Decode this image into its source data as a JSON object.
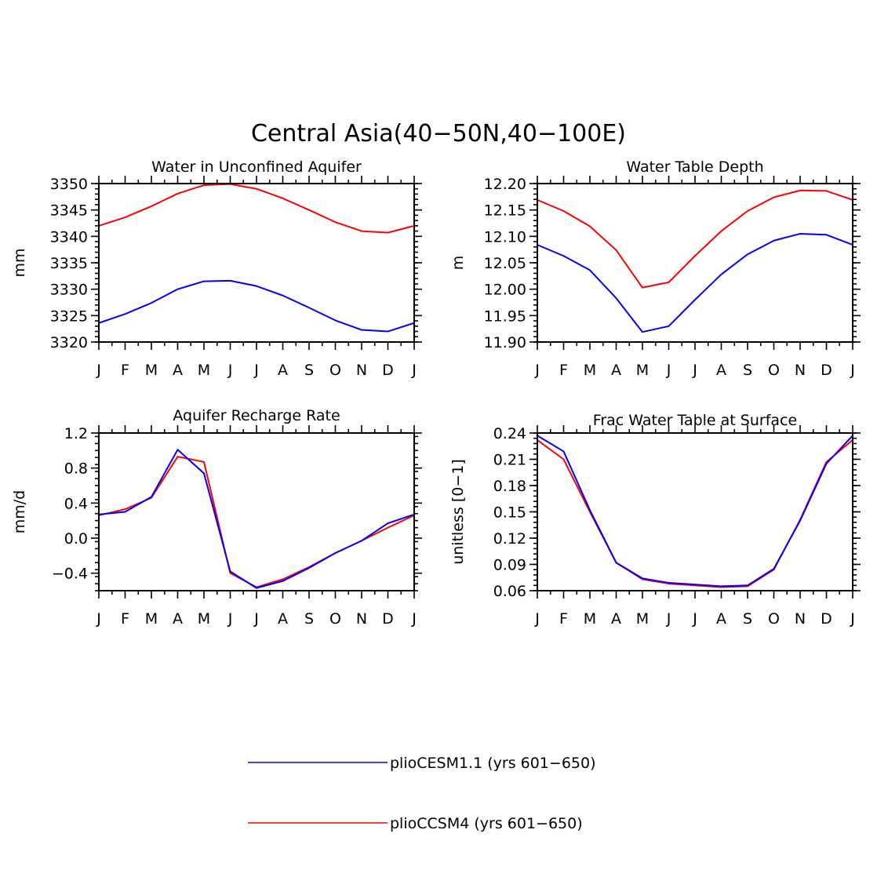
{
  "title": "Central Asia(40−50N,40−100E)",
  "colors": {
    "blue": "#0000ff",
    "red": "#ff0000"
  },
  "legend": [
    {
      "label": "plioCESM1.1 (yrs 601−650)",
      "color": "#0000ff"
    },
    {
      "label": "plioCCSM4 (yrs 601−650)",
      "color": "#ff0000"
    }
  ],
  "chart_data": [
    {
      "type": "line",
      "title": "Water in Unconfined Aquifer",
      "ylabel": "mm",
      "categories": [
        "J",
        "F",
        "M",
        "A",
        "M",
        "J",
        "J",
        "A",
        "S",
        "O",
        "N",
        "D",
        "J"
      ],
      "ylim": [
        3320,
        3350
      ],
      "yticks": [
        3320,
        3325,
        3330,
        3335,
        3340,
        3345,
        3350
      ],
      "ytick_labels": [
        "3320",
        "3325",
        "3330",
        "3335",
        "3340",
        "3345",
        "3350"
      ],
      "series": [
        {
          "name": "plioCESM1.1 (yrs 601−650)",
          "color": "#0000ff",
          "values": [
            3323.6,
            3325.3,
            3327.4,
            3330.0,
            3331.5,
            3331.6,
            3330.6,
            3328.8,
            3326.5,
            3324.1,
            3322.3,
            3322.0,
            3323.6
          ]
        },
        {
          "name": "plioCCSM4 (yrs 601−650)",
          "color": "#ff0000",
          "values": [
            3342.0,
            3343.6,
            3345.7,
            3348.1,
            3349.7,
            3349.9,
            3349.0,
            3347.2,
            3345.0,
            3342.7,
            3341.0,
            3340.7,
            3342.0
          ]
        }
      ]
    },
    {
      "type": "line",
      "title": "Water Table Depth",
      "ylabel": "m",
      "categories": [
        "J",
        "F",
        "M",
        "A",
        "M",
        "J",
        "J",
        "A",
        "S",
        "O",
        "N",
        "D",
        "J"
      ],
      "ylim": [
        11.9,
        12.2
      ],
      "yticks": [
        11.9,
        11.95,
        12.0,
        12.05,
        12.1,
        12.15,
        12.2
      ],
      "ytick_labels": [
        "11.90",
        "11.95",
        "12.00",
        "12.05",
        "12.10",
        "12.15",
        "12.20"
      ],
      "series": [
        {
          "name": "plioCESM1.1 (yrs 601−650)",
          "color": "#0000ff",
          "values": [
            12.084,
            12.063,
            12.036,
            11.983,
            11.919,
            11.93,
            11.98,
            12.028,
            12.066,
            12.092,
            12.105,
            12.103,
            12.084
          ]
        },
        {
          "name": "plioCCSM4 (yrs 601−650)",
          "color": "#ff0000",
          "values": [
            12.169,
            12.148,
            12.119,
            12.074,
            12.003,
            12.013,
            12.063,
            12.11,
            12.148,
            12.174,
            12.187,
            12.186,
            12.169
          ]
        }
      ]
    },
    {
      "type": "line",
      "title": "Aquifer Recharge Rate",
      "ylabel": "mm/d",
      "categories": [
        "J",
        "F",
        "M",
        "A",
        "M",
        "J",
        "J",
        "A",
        "S",
        "O",
        "N",
        "D",
        "J"
      ],
      "ylim": [
        -0.6,
        1.2
      ],
      "yticks": [
        -0.4,
        0.0,
        0.4,
        0.8,
        1.2
      ],
      "ytick_labels": [
        "−0.4",
        "0.0",
        "0.4",
        "0.8",
        "1.2"
      ],
      "series": [
        {
          "name": "plioCESM1.1 (yrs 601−650)",
          "color": "#0000ff",
          "values": [
            0.27,
            0.3,
            0.47,
            1.01,
            0.74,
            -0.38,
            -0.57,
            -0.49,
            -0.34,
            -0.17,
            -0.03,
            0.17,
            0.27
          ]
        },
        {
          "name": "plioCCSM4 (yrs 601−650)",
          "color": "#ff0000",
          "values": [
            0.26,
            0.33,
            0.46,
            0.93,
            0.87,
            -0.4,
            -0.56,
            -0.47,
            -0.33,
            -0.17,
            -0.03,
            0.12,
            0.26
          ]
        }
      ]
    },
    {
      "type": "line",
      "title": "Frac Water Table at Surface",
      "ylabel": "unitless [0−1]",
      "categories": [
        "J",
        "F",
        "M",
        "A",
        "M",
        "J",
        "J",
        "A",
        "S",
        "O",
        "N",
        "D",
        "J"
      ],
      "ylim": [
        0.06,
        0.24
      ],
      "yticks": [
        0.06,
        0.09,
        0.12,
        0.15,
        0.18,
        0.21,
        0.24
      ],
      "ytick_labels": [
        "0.06",
        "0.09",
        "0.12",
        "0.15",
        "0.18",
        "0.21",
        "0.24"
      ],
      "series": [
        {
          "name": "plioCESM1.1 (yrs 601−650)",
          "color": "#0000ff",
          "values": [
            0.237,
            0.219,
            0.152,
            0.092,
            0.074,
            0.069,
            0.067,
            0.065,
            0.066,
            0.085,
            0.14,
            0.205,
            0.237
          ]
        },
        {
          "name": "plioCCSM4 (yrs 601−650)",
          "color": "#ff0000",
          "values": [
            0.232,
            0.21,
            0.15,
            0.092,
            0.073,
            0.068,
            0.066,
            0.064,
            0.065,
            0.084,
            0.141,
            0.207,
            0.232
          ]
        }
      ]
    }
  ]
}
